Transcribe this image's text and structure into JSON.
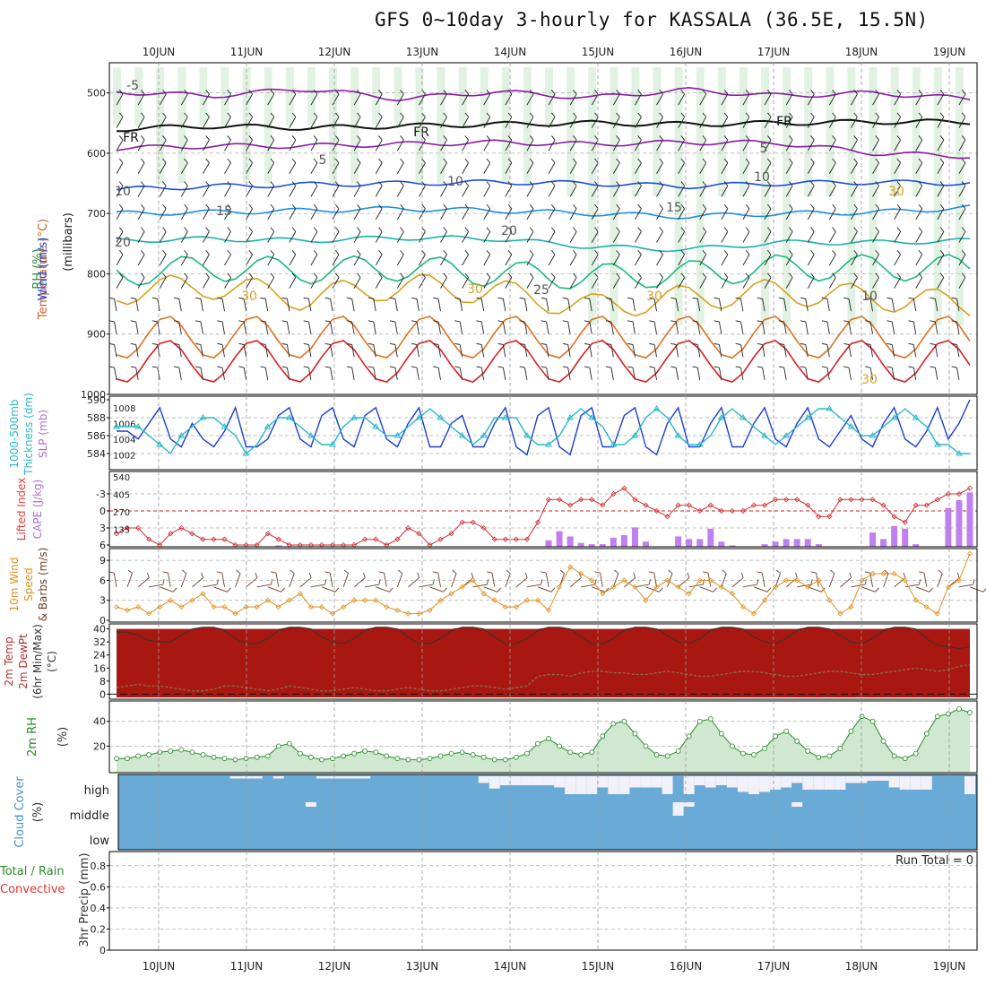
{
  "title": "GFS 0~10day 3-hourly for KASSALA (36.5E, 15.5N)",
  "date_labels": [
    "10JUN",
    "11JUN",
    "12JUN",
    "13JUN",
    "14JUN",
    "15JUN",
    "16JUN",
    "17JUN",
    "18JUN",
    "19JUN"
  ],
  "colors": {
    "rh_fill": "#9fd59f",
    "temp_warm": "#d62020",
    "rh_line": "#2a8a2a",
    "cloud": "#6aaad6",
    "cape": "#c080f0"
  },
  "chart_data": [
    {
      "type": "contour",
      "panel": "upper-air",
      "ylabel": "(millibars)",
      "y_ticks": [
        500,
        600,
        700,
        800,
        900,
        1000
      ],
      "ylim": [
        450,
        1000
      ],
      "left_labels": [
        "RH (%)",
        "Temperature (°C)",
        "Wind (m/s)"
      ],
      "series": [
        {
          "name": "-5",
          "pressure": [
            498,
            505,
            493,
            510,
            498,
            508,
            495,
            505,
            500,
            510
          ]
        },
        {
          "name": "FR",
          "pressure": [
            560,
            555,
            558,
            555,
            552,
            550,
            552,
            550,
            548,
            548
          ]
        },
        {
          "name": "5",
          "pressure": [
            592,
            588,
            588,
            585,
            582,
            585,
            582,
            583,
            600,
            605
          ]
        },
        {
          "name": "10",
          "pressure": [
            660,
            655,
            652,
            650,
            648,
            650,
            655,
            650,
            648,
            650
          ]
        },
        {
          "name": "15",
          "pressure": [
            700,
            698,
            695,
            692,
            695,
            700,
            705,
            700,
            698,
            690
          ]
        },
        {
          "name": "20",
          "pressure": [
            745,
            742,
            745,
            740,
            742,
            755,
            760,
            748,
            748,
            745
          ]
        },
        {
          "name": "25",
          "pressure": [
            800,
            790,
            795,
            790,
            800,
            805,
            800,
            790,
            790,
            790
          ]
        },
        {
          "name": "30",
          "pressure": [
            830,
            820,
            840,
            820,
            830,
            855,
            840,
            830,
            840,
            850
          ]
        }
      ],
      "contour_labels": [
        "-5",
        "FR",
        "FR",
        "FR",
        "5",
        "5",
        "10",
        "10",
        "10",
        "15",
        "15",
        "20",
        "20",
        "25",
        "30",
        "30",
        "30",
        "30",
        "10",
        "30"
      ]
    },
    {
      "type": "line",
      "panel": "thickness-slp",
      "left_labels": [
        "1000-500mb",
        "Thickness (dm)",
        "SLP (mb)"
      ],
      "y_left_ticks": [
        584,
        586,
        588,
        590
      ],
      "y_right_ticks": [
        1002,
        1004,
        1006,
        1008
      ],
      "series": [
        {
          "name": "SLP",
          "axis": "right",
          "values": [
            1005,
            1005,
            1004,
            1006,
            1008,
            1004,
            1003,
            1006,
            1004,
            1003,
            1005,
            1008,
            1003,
            1003,
            1004,
            1007,
            1008,
            1004,
            1003,
            1007,
            1008,
            1004,
            1003,
            1007,
            1008,
            1004,
            1003,
            1006,
            1008,
            1003,
            1003,
            1006,
            1007,
            1003,
            1003,
            1006,
            1008,
            1003,
            1002,
            1007,
            1008,
            1003,
            1002,
            1007,
            1008,
            1003,
            1003,
            1007,
            1008,
            1003,
            1002,
            1006,
            1008,
            1003,
            1003,
            1006,
            1008,
            1003,
            1003,
            1006,
            1008,
            1004,
            1003,
            1006,
            1008,
            1004,
            1003,
            1005,
            1007,
            1004,
            1003,
            1006,
            1008,
            1004,
            1003,
            1005,
            1008,
            1004,
            1006,
            1009
          ]
        },
        {
          "name": "Thickness",
          "axis": "left",
          "values": [
            587,
            587,
            587,
            586,
            585,
            584,
            586,
            587,
            588,
            588,
            587,
            586,
            584,
            585,
            587,
            588,
            588,
            587,
            586,
            585,
            585,
            587,
            588,
            588,
            587,
            586,
            586,
            587,
            588,
            589,
            588,
            587,
            586,
            585,
            586,
            588,
            588,
            588,
            586,
            585,
            585,
            586,
            588,
            589,
            588,
            587,
            585,
            585,
            586,
            588,
            589,
            588,
            586,
            585,
            585,
            586,
            588,
            589,
            588,
            587,
            586,
            585,
            586,
            587,
            588,
            589,
            589,
            588,
            587,
            586,
            586,
            587,
            588,
            589,
            588,
            587,
            585,
            585,
            584,
            584
          ]
        }
      ]
    },
    {
      "type": "bar-line",
      "panel": "lifted-cape",
      "left_labels": [
        "Lifted Index",
        "CAPE (J/kg)"
      ],
      "y_left_ticks": [
        6,
        3,
        0,
        -3
      ],
      "y_right_ticks": [
        135,
        270,
        405,
        540
      ],
      "series": [
        {
          "name": "Lifted Index",
          "values": [
            4,
            3,
            3,
            5,
            6,
            4,
            3,
            4,
            5,
            5,
            5,
            6,
            6,
            6,
            4,
            5,
            6,
            6,
            6,
            6,
            6,
            6,
            6,
            5,
            5,
            6,
            5,
            3,
            4,
            6,
            5,
            4,
            2,
            2,
            3,
            5,
            5,
            5,
            5,
            2,
            -2,
            -2,
            -1,
            -2,
            -2,
            -1,
            -3,
            -4,
            -2,
            -1,
            0,
            1,
            -1,
            -1,
            0,
            -1,
            0,
            0,
            0,
            -1,
            -1,
            -2,
            -2,
            -2,
            -1,
            1,
            1,
            -2,
            -2,
            -2,
            -2,
            -1,
            1,
            2,
            -1,
            -1,
            -2,
            -3,
            -3,
            -4
          ]
        },
        {
          "name": "CAPE",
          "values": [
            0,
            0,
            0,
            0,
            0,
            0,
            0,
            0,
            0,
            0,
            0,
            0,
            0,
            0,
            0,
            10,
            0,
            0,
            0,
            0,
            0,
            0,
            0,
            0,
            0,
            0,
            0,
            0,
            0,
            0,
            0,
            0,
            0,
            0,
            0,
            0,
            0,
            0,
            0,
            0,
            50,
            120,
            80,
            30,
            20,
            20,
            70,
            90,
            150,
            40,
            0,
            0,
            80,
            60,
            60,
            140,
            40,
            10,
            0,
            0,
            20,
            40,
            60,
            60,
            60,
            20,
            0,
            0,
            0,
            0,
            110,
            60,
            160,
            140,
            20,
            0,
            0,
            300,
            360,
            420
          ]
        }
      ]
    },
    {
      "type": "line",
      "panel": "wind10m",
      "left_labels": [
        "10m Wind",
        "Speed",
        "& Barbs (m/s)"
      ],
      "y_ticks": [
        0,
        3,
        6,
        9
      ],
      "series": [
        {
          "name": "Wind Speed",
          "values": [
            2,
            1.5,
            2,
            1,
            2,
            3,
            2,
            3,
            4,
            2,
            2,
            1,
            2,
            2,
            3,
            2,
            3,
            4,
            2,
            2,
            1,
            2,
            3,
            3,
            3,
            2,
            1.5,
            1,
            1,
            1.5,
            3,
            4,
            5,
            6,
            4,
            3,
            2,
            2,
            3,
            3,
            1.5,
            5,
            8,
            7,
            6,
            4,
            5,
            6,
            5,
            3,
            5,
            6,
            5,
            4,
            6,
            6,
            5,
            4,
            2,
            1,
            3,
            5,
            6,
            6,
            5,
            6,
            3,
            1,
            2,
            6,
            7,
            7,
            7,
            6,
            3,
            2,
            1,
            5,
            6,
            10
          ]
        }
      ]
    },
    {
      "type": "area",
      "panel": "temp2m",
      "left_labels": [
        "2m Temp",
        "2m DewPt",
        "(6hr Min/Max)",
        "(°C)"
      ],
      "y_ticks": [
        0,
        8,
        16,
        24,
        32,
        40
      ],
      "series": [
        {
          "name": "Temperature",
          "values": [
            38,
            38,
            36,
            33,
            32,
            32,
            36,
            40,
            41,
            41,
            39,
            34,
            31,
            31,
            34,
            39,
            41,
            41,
            40,
            35,
            32,
            31,
            34,
            39,
            41,
            41,
            40,
            35,
            31,
            31,
            34,
            39,
            41,
            41,
            40,
            35,
            31,
            31,
            34,
            39,
            41,
            41,
            40,
            35,
            31,
            31,
            34,
            39,
            41,
            41,
            40,
            36,
            32,
            31,
            34,
            39,
            41,
            41,
            40,
            35,
            32,
            31,
            34,
            39,
            41,
            41,
            40,
            36,
            32,
            31,
            34,
            39,
            41,
            41,
            40,
            34,
            30,
            29,
            28,
            29
          ]
        },
        {
          "name": "DewPt",
          "values": [
            4,
            5,
            6,
            5,
            5,
            4,
            3,
            2,
            2,
            3,
            5,
            5,
            4,
            3,
            2,
            3,
            5,
            4,
            3,
            2,
            2,
            3,
            4,
            3,
            2,
            2,
            3,
            4,
            3,
            2,
            2,
            3,
            4,
            5,
            5,
            4,
            3,
            4,
            5,
            11,
            12,
            12,
            11,
            13,
            14,
            14,
            13,
            13,
            12,
            12,
            13,
            14,
            13,
            12,
            11,
            11,
            12,
            13,
            14,
            14,
            13,
            12,
            11,
            11,
            12,
            13,
            14,
            14,
            13,
            12,
            12,
            13,
            14,
            15,
            16,
            15,
            14,
            15,
            17,
            18
          ]
        }
      ]
    },
    {
      "type": "area",
      "panel": "rh2m",
      "left_labels": [
        "2m RH",
        "(%)"
      ],
      "y_ticks": [
        20,
        40
      ],
      "series": [
        {
          "name": "RH",
          "values": [
            10,
            10,
            12,
            13,
            15,
            16,
            17,
            15,
            13,
            11,
            10,
            9,
            10,
            11,
            12,
            20,
            22,
            14,
            11,
            9,
            10,
            12,
            14,
            16,
            15,
            12,
            10,
            9,
            9,
            10,
            12,
            14,
            15,
            13,
            11,
            9,
            9,
            11,
            14,
            22,
            26,
            20,
            15,
            13,
            15,
            28,
            38,
            40,
            30,
            20,
            13,
            12,
            16,
            28,
            40,
            42,
            30,
            20,
            14,
            13,
            18,
            28,
            32,
            24,
            16,
            11,
            12,
            18,
            32,
            44,
            40,
            24,
            12,
            10,
            14,
            30,
            44,
            46,
            50,
            47
          ]
        }
      ]
    },
    {
      "type": "bar",
      "panel": "cloud",
      "left_labels": [
        "Cloud Cover",
        "(%)"
      ],
      "levels": [
        "high",
        "middle",
        "low"
      ],
      "series": [
        {
          "name": "high",
          "values": [
            0,
            0,
            0,
            0,
            0,
            0,
            0,
            0,
            0,
            0,
            0,
            10,
            10,
            10,
            0,
            10,
            0,
            0,
            0,
            10,
            10,
            10,
            10,
            10,
            0,
            0,
            0,
            0,
            0,
            0,
            0,
            0,
            0,
            0,
            30,
            55,
            40,
            40,
            40,
            40,
            40,
            50,
            80,
            80,
            80,
            50,
            80,
            80,
            50,
            50,
            50,
            80,
            0,
            80,
            40,
            50,
            40,
            50,
            70,
            80,
            70,
            60,
            50,
            30,
            60,
            60,
            60,
            60,
            30,
            30,
            20,
            20,
            50,
            60,
            60,
            60,
            0,
            0,
            0,
            80
          ]
        },
        {
          "name": "middle",
          "values": [
            0,
            0,
            0,
            0,
            0,
            0,
            0,
            0,
            0,
            0,
            0,
            0,
            0,
            0,
            0,
            0,
            0,
            0,
            20,
            0,
            0,
            0,
            0,
            0,
            0,
            0,
            0,
            0,
            0,
            0,
            0,
            0,
            0,
            0,
            0,
            0,
            0,
            0,
            0,
            0,
            0,
            0,
            0,
            0,
            0,
            0,
            0,
            0,
            0,
            0,
            0,
            0,
            60,
            20,
            0,
            0,
            0,
            0,
            0,
            0,
            0,
            0,
            0,
            20,
            0,
            0,
            0,
            0,
            0,
            0,
            0,
            0,
            0,
            0,
            0,
            0,
            0,
            0,
            0,
            0
          ]
        }
      ]
    },
    {
      "type": "bar",
      "panel": "precip",
      "left_labels": [
        "Total / Rain",
        "Convective",
        "3hr Precip (mm)"
      ],
      "y_ticks": [
        0,
        0.2,
        0.4,
        0.6,
        0.8
      ],
      "run_total": "Run Total = 0",
      "series": [
        {
          "name": "Precip",
          "values": []
        }
      ]
    }
  ]
}
